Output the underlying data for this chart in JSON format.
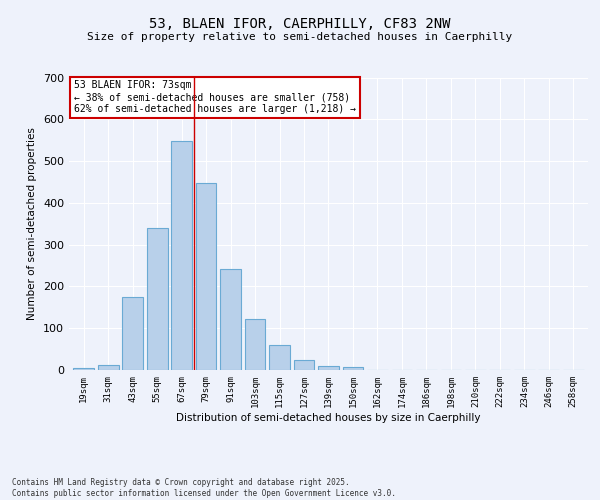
{
  "title": "53, BLAEN IFOR, CAERPHILLY, CF83 2NW",
  "subtitle": "Size of property relative to semi-detached houses in Caerphilly",
  "xlabel": "Distribution of semi-detached houses by size in Caerphilly",
  "ylabel": "Number of semi-detached properties",
  "bar_labels": [
    "19sqm",
    "31sqm",
    "43sqm",
    "55sqm",
    "67sqm",
    "79sqm",
    "91sqm",
    "103sqm",
    "115sqm",
    "127sqm",
    "139sqm",
    "150sqm",
    "162sqm",
    "174sqm",
    "186sqm",
    "198sqm",
    "210sqm",
    "222sqm",
    "234sqm",
    "246sqm",
    "258sqm"
  ],
  "bar_values": [
    5,
    13,
    175,
    340,
    548,
    448,
    242,
    122,
    60,
    24,
    10,
    8,
    1,
    0,
    0,
    0,
    0,
    0,
    0,
    0,
    0
  ],
  "bar_color": "#b8d0ea",
  "bar_edge_color": "#6aaad4",
  "property_line_x": 73,
  "property_line_label": "53 BLAEN IFOR: 73sqm",
  "annotation_text": "← 38% of semi-detached houses are smaller (758)\n62% of semi-detached houses are larger (1,218) →",
  "annotation_box_color": "#ffffff",
  "annotation_box_edge": "#cc0000",
  "line_color": "#cc0000",
  "ylim": [
    0,
    700
  ],
  "yticks": [
    0,
    100,
    200,
    300,
    400,
    500,
    600,
    700
  ],
  "footer_text": "Contains HM Land Registry data © Crown copyright and database right 2025.\nContains public sector information licensed under the Open Government Licence v3.0.",
  "bg_color": "#eef2fb",
  "grid_color": "#ffffff",
  "bin_width": 12
}
